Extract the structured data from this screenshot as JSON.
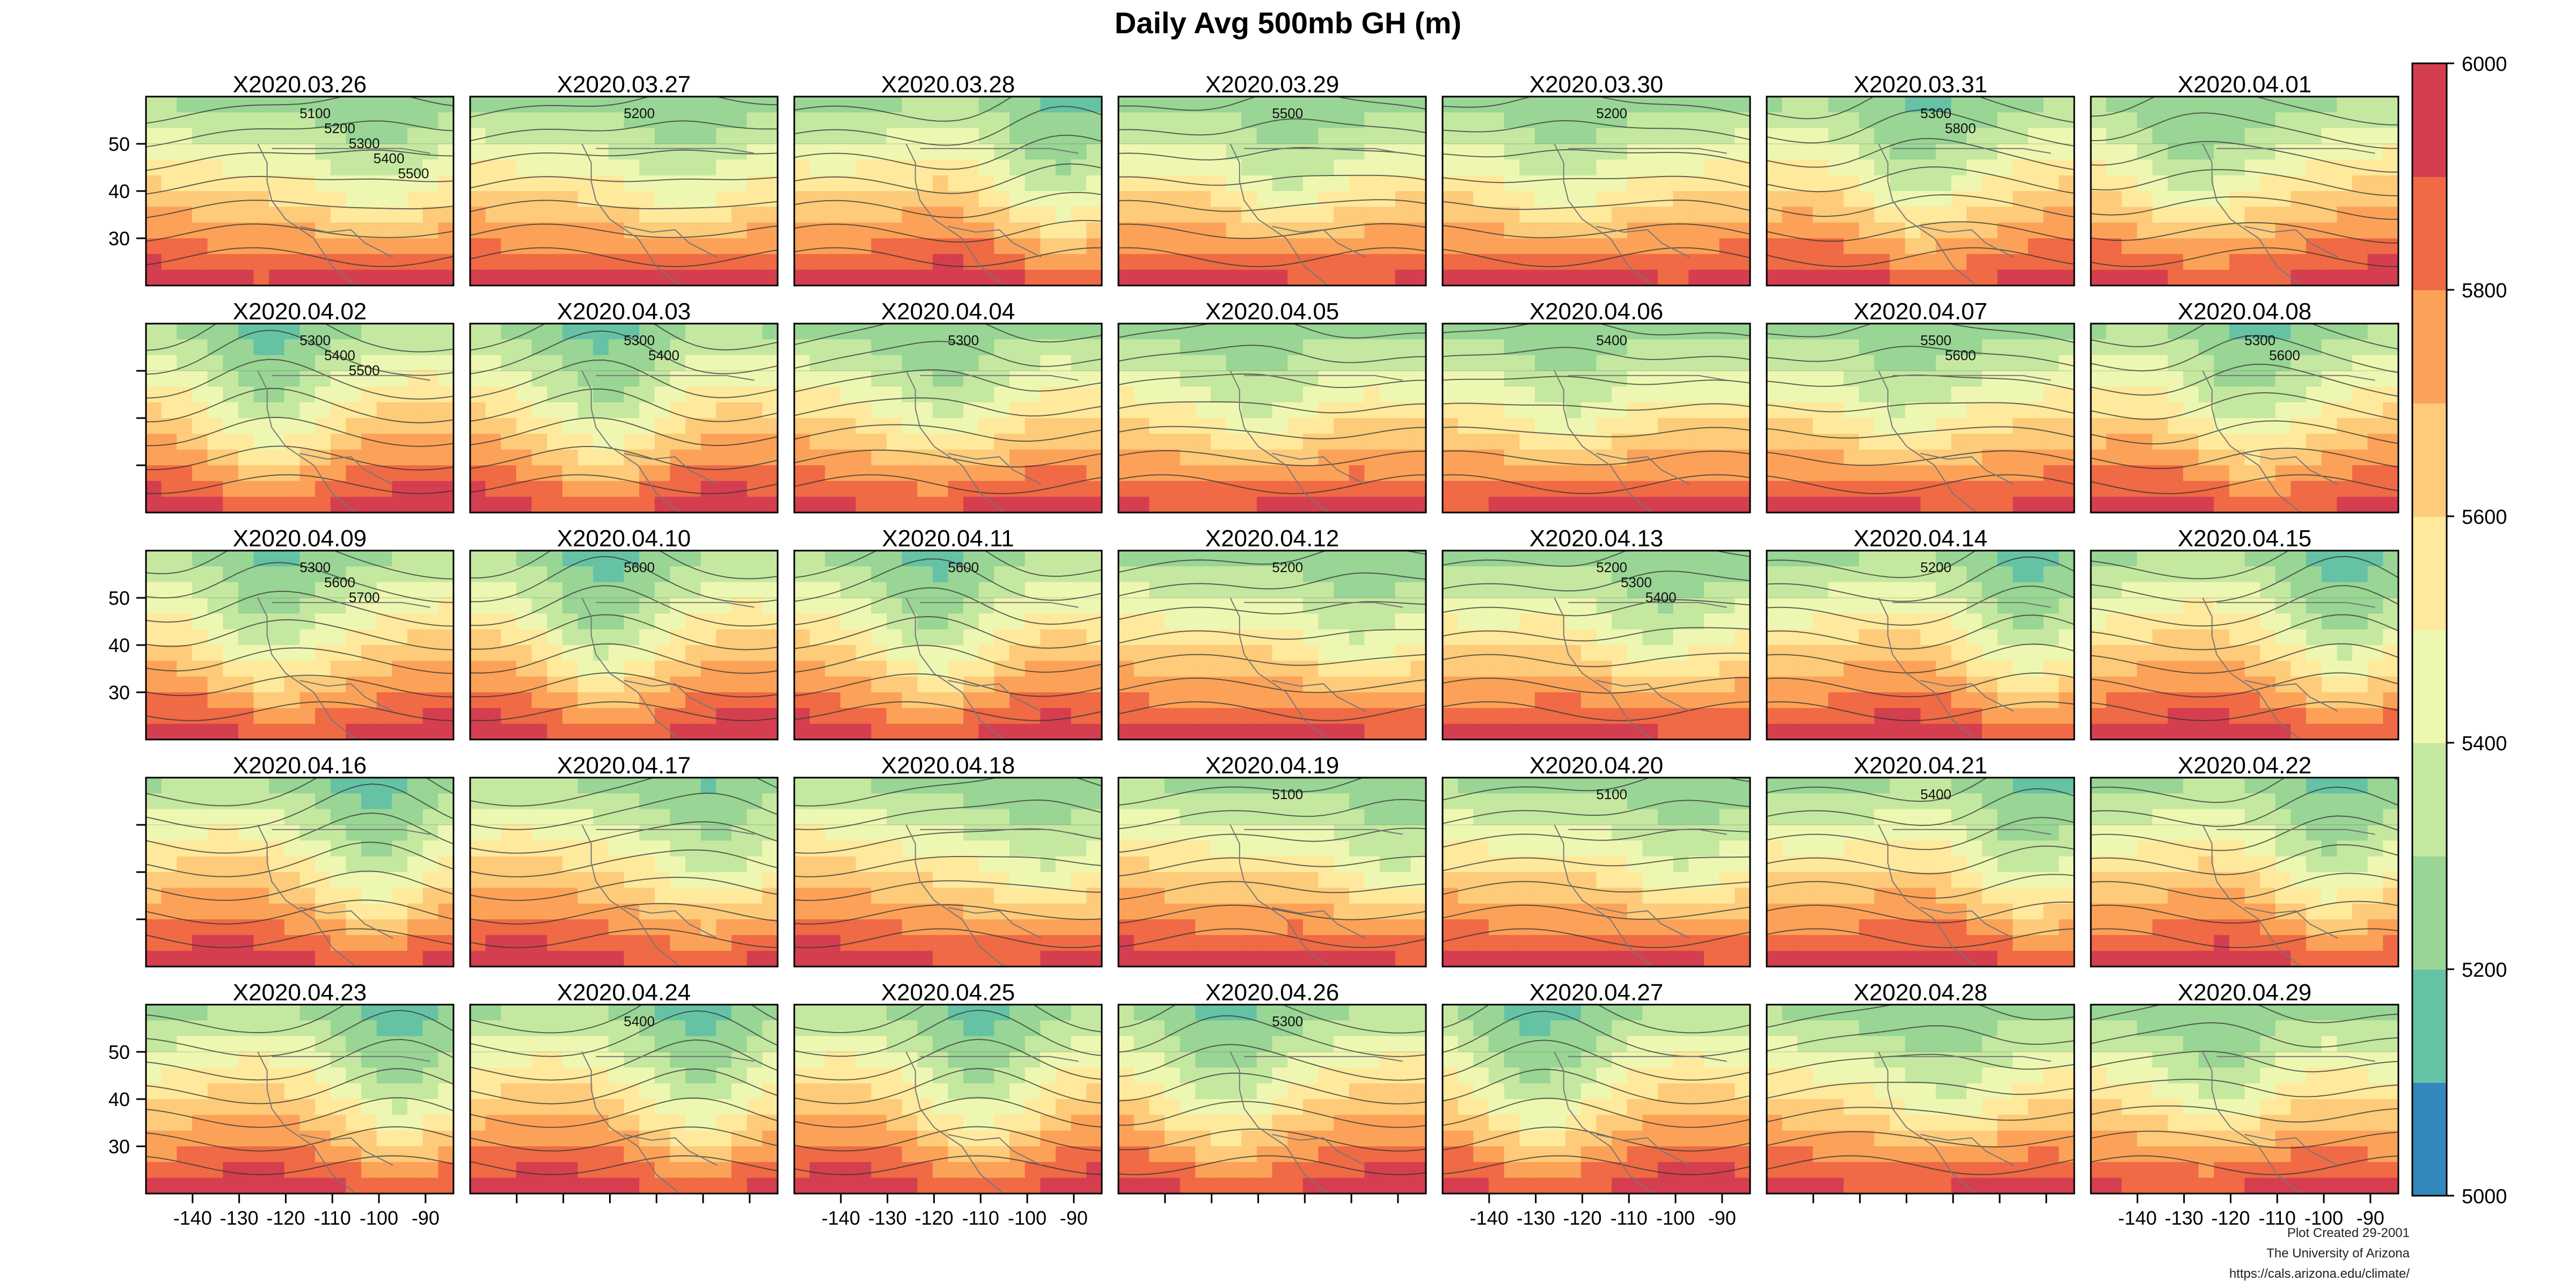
{
  "chart_data": {
    "type": "heatmap",
    "title": "Daily Avg 500mb GH (m)",
    "panels": [
      "X2020.03.26",
      "X2020.03.27",
      "X2020.03.28",
      "X2020.03.29",
      "X2020.03.30",
      "X2020.03.31",
      "X2020.04.01",
      "X2020.04.02",
      "X2020.04.03",
      "X2020.04.04",
      "X2020.04.05",
      "X2020.04.06",
      "X2020.04.07",
      "X2020.04.08",
      "X2020.04.09",
      "X2020.04.10",
      "X2020.04.11",
      "X2020.04.12",
      "X2020.04.13",
      "X2020.04.14",
      "X2020.04.15",
      "X2020.04.16",
      "X2020.04.17",
      "X2020.04.18",
      "X2020.04.19",
      "X2020.04.20",
      "X2020.04.21",
      "X2020.04.22",
      "X2020.04.23",
      "X2020.04.24",
      "X2020.04.25",
      "X2020.04.26",
      "X2020.04.27",
      "X2020.04.28",
      "X2020.04.29"
    ],
    "grid": {
      "rows": 5,
      "cols": 7
    },
    "x_ticks": [
      "-140",
      "-130",
      "-120",
      "-110",
      "-100",
      "-90"
    ],
    "x_tick_values": [
      -140,
      -130,
      -120,
      -110,
      -100,
      -90
    ],
    "xlim": [
      -150,
      -84
    ],
    "y_ticks": [
      "50",
      "40",
      "30"
    ],
    "y_tick_values": [
      50,
      40,
      30
    ],
    "ylim": [
      20,
      60
    ],
    "colorbar": {
      "min": 5000,
      "max": 6000,
      "labels": [
        "6000",
        "5800",
        "5600",
        "5400",
        "5200",
        "5000"
      ],
      "label_values": [
        6000,
        5800,
        5600,
        5400,
        5200,
        5000
      ],
      "colors_bottom_to_top": [
        "#3288bd",
        "#66c2a5",
        "#99d594",
        "#c5e8a0",
        "#eef7b1",
        "#fee99c",
        "#fdcb79",
        "#fca258",
        "#ef6a45",
        "#d53e4f"
      ]
    },
    "contour_labels": [
      [
        "5100",
        "5200",
        "5300",
        "5400",
        "5500"
      ],
      [
        "5200"
      ],
      [],
      [
        "5500"
      ],
      [
        "5200"
      ],
      [
        "5300",
        "5800"
      ],
      [],
      [
        "5300",
        "5400",
        "5500"
      ],
      [
        "5300",
        "5400"
      ],
      [
        "5300"
      ],
      [],
      [
        "5400"
      ],
      [
        "5500",
        "5600"
      ],
      [
        "5300",
        "5600"
      ],
      [
        "5300",
        "5600",
        "5700"
      ],
      [
        "5600"
      ],
      [
        "5600"
      ],
      [
        "5200"
      ],
      [
        "5200",
        "5300",
        "5400"
      ],
      [
        "5200"
      ],
      [],
      [],
      [],
      [],
      [
        "5100"
      ],
      [
        "5100"
      ],
      [
        "5400"
      ],
      [],
      [],
      [
        "5400"
      ],
      [],
      [
        "5300"
      ],
      [],
      [],
      []
    ],
    "footer": [
      "Plot Created 29-2001",
      "The University of Arizona",
      "https://cals.arizona.edu/climate/"
    ]
  }
}
